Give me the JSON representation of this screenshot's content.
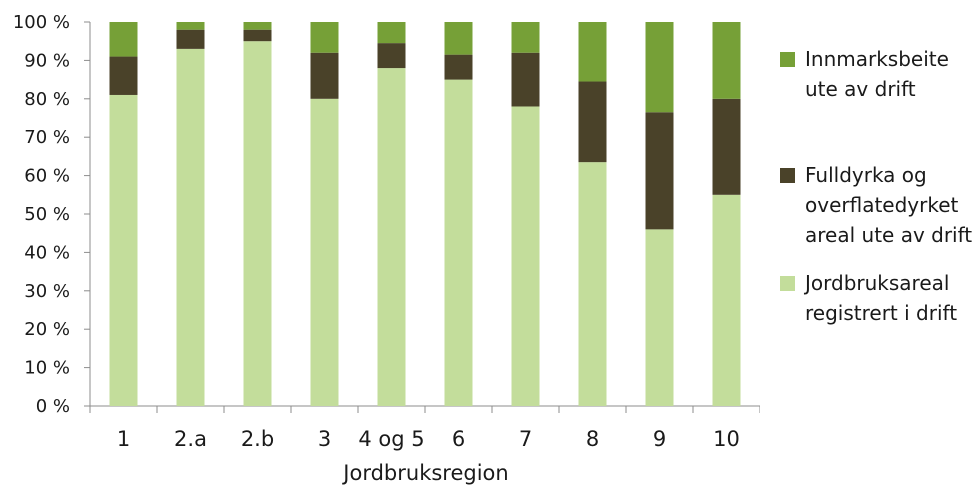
{
  "chart_data": {
    "type": "bar",
    "stacked": true,
    "categories": [
      "1",
      "2.a",
      "2.b",
      "3",
      "4 og 5",
      "6",
      "7",
      "8",
      "9",
      "10"
    ],
    "series": [
      {
        "name": "Jordbruksareal registrert i drift",
        "color": "#c3dd9b",
        "values": [
          81,
          93,
          95,
          80,
          88,
          85,
          78,
          63.5,
          46,
          55
        ]
      },
      {
        "name": "Fulldyrka og overflatedyrket areal ute av drift",
        "color": "#4a4229",
        "values": [
          10,
          5,
          3,
          12,
          6.5,
          6.5,
          14,
          21,
          30.5,
          25
        ]
      },
      {
        "name": "Innmarksbeite ute av drift",
        "color": "#76a037",
        "values": [
          9,
          2,
          2,
          8,
          5.5,
          8.5,
          8,
          15.5,
          23.5,
          20
        ]
      }
    ],
    "xlabel": "Jordbruksregion",
    "ylabel": "",
    "ylim": [
      0,
      100
    ],
    "yticks": [
      "0 %",
      "10 %",
      "20 %",
      "30 %",
      "40 %",
      "50 %",
      "60 %",
      "70 %",
      "80 %",
      "90 %",
      "100 %"
    ],
    "grid": false,
    "legend_position": "right"
  },
  "legend": [
    {
      "label": "Innmarksbeite\nute av drift",
      "color": "#76a037"
    },
    {
      "label": "Fulldyrka og\noverflatedyrket\nareal ute av drift",
      "color": "#4a4229"
    },
    {
      "label": "Jordbruksareal\nregistrert i drift",
      "color": "#c3dd9b"
    }
  ]
}
